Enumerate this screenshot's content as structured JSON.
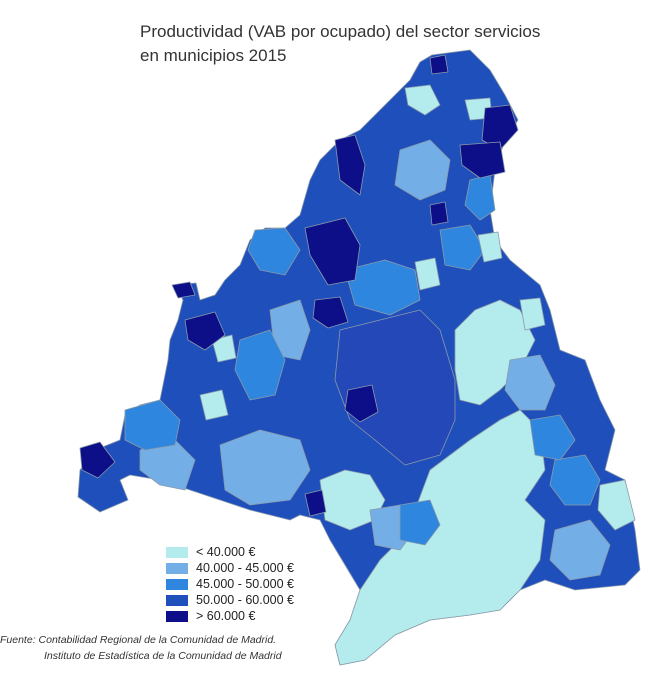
{
  "title_line1": "Productividad (VAB por ocupado) del sector servicios",
  "title_line2": "en municipios 2015",
  "legend": [
    {
      "label": "< 40.000 €",
      "color": "#b4ecee"
    },
    {
      "label": "40.000 - 45.000 €",
      "color": "#74aee6"
    },
    {
      "label": "45.000 - 50.000 €",
      "color": "#2e86df"
    },
    {
      "label": "50.000 - 60.000 €",
      "color": "#1f4fbb"
    },
    {
      "label": "> 60.000 €",
      "color": "#0c0f88"
    }
  ],
  "source_line1": "Fuente: Contabilidad Regional de la Comunidad de Madrid.",
  "source_line2": "Instituto de Estadística de la Comunidad de Madrid"
}
